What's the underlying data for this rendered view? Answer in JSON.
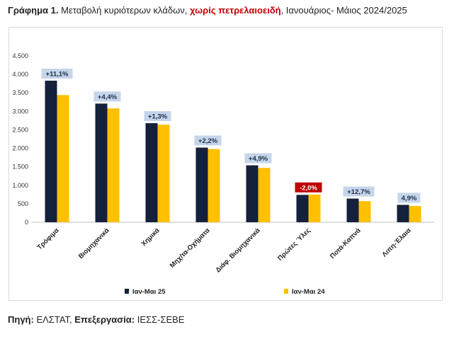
{
  "caption": {
    "prefix": "Γράφημα 1.",
    "text_before": " Μεταβολή κυριότερων κλάδων, ",
    "highlight": "χωρίς πετρελαιοειδή",
    "text_after": ", Ιανουάριος- Μάιος 2024/2025"
  },
  "source": {
    "label_source": "Πηγή:",
    "source_value": " ΕΛΣΤΑΤ, ",
    "label_processing": "Επεξεργασία:",
    "processing_value": " ΙΕΣΣ-ΣΕΒΕ"
  },
  "chart_data": {
    "type": "bar",
    "title": "",
    "xlabel": "",
    "ylabel": "",
    "ylim": [
      0,
      4500
    ],
    "yticks": [
      0,
      500,
      1000,
      1500,
      2000,
      2500,
      3000,
      3500,
      4000,
      4500
    ],
    "ytick_labels": [
      "0",
      "500",
      "1.000",
      "1.500",
      "2.000",
      "2.500",
      "3.000",
      "3.500",
      "4.000",
      "4.500"
    ],
    "grid": false,
    "legend_position": "bottom",
    "categories": [
      "Τρόφιμα",
      "Βιομηχανικά",
      "Χημικά",
      "Μηχ/τα-Οχήματα",
      "Διάφ. Βιομηχανικά",
      "Πρώτες Ύλες",
      "Ποτά-Καπνά",
      "Λιπη-Έλαια"
    ],
    "series": [
      {
        "name": "Ιαν-Μαι 25",
        "color": "#14213d",
        "values": [
          3830,
          3210,
          2680,
          2020,
          1540,
          740,
          640,
          470
        ]
      },
      {
        "name": "Ιαν-Μαι 24",
        "color": "#ffc000",
        "values": [
          3440,
          3080,
          2640,
          1980,
          1470,
          750,
          570,
          440
        ]
      }
    ],
    "annotations": [
      {
        "category": "Τρόφιμα",
        "text": "+11,1%",
        "negative": false
      },
      {
        "category": "Βιομηχανικά",
        "text": "+4,4%",
        "negative": false
      },
      {
        "category": "Χημικά",
        "text": "+1,3%",
        "negative": false
      },
      {
        "category": "Μηχ/τα-Οχήματα",
        "text": "+2,2%",
        "negative": false
      },
      {
        "category": "Διάφ. Βιομηχανικά",
        "text": "+4,9%",
        "negative": false
      },
      {
        "category": "Πρώτες Ύλες",
        "text": "-2,0%",
        "negative": true
      },
      {
        "category": "Ποτά-Καπνά",
        "text": "+12,7%",
        "negative": false
      },
      {
        "category": "Λιπη-Έλαια",
        "text": "4,9%",
        "negative": false
      }
    ],
    "annotation_colors": {
      "positive_bg": "#c5d5ea",
      "positive_text": "#1f2d4a",
      "negative_bg": "#c00000",
      "negative_text": "#ffffff"
    },
    "axis_color": "#bfbfbf"
  }
}
